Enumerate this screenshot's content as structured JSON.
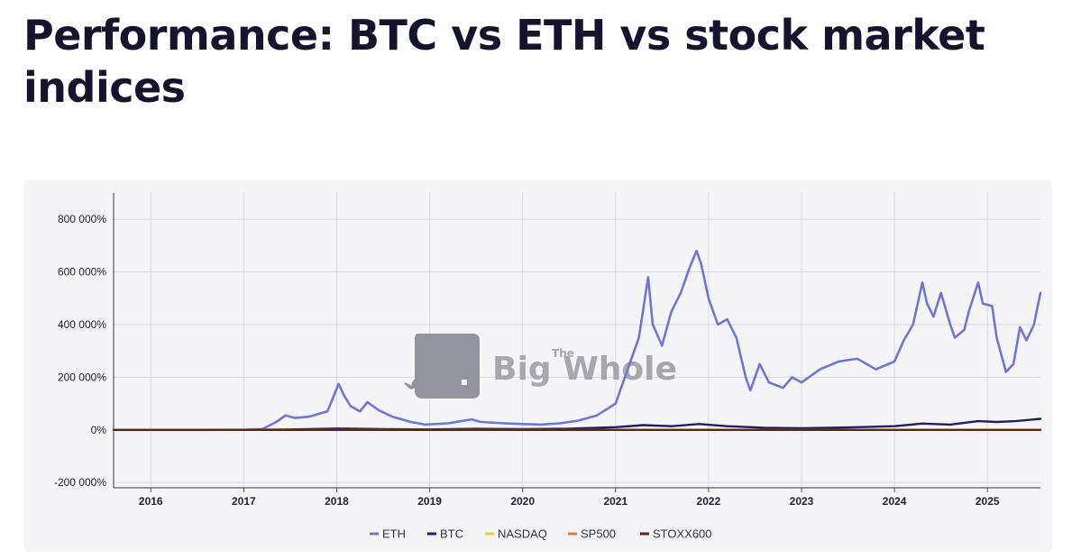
{
  "title": "Performance: BTC vs ETH vs stock market indices",
  "watermark": {
    "small": "The",
    "brand": "Big Whole"
  },
  "chart_data": {
    "type": "line",
    "title": "Performance: BTC vs ETH vs stock market indices",
    "xlabel": "",
    "ylabel": "",
    "y_unit": "%",
    "xlim": [
      2015.6,
      2025.57
    ],
    "ylim": [
      -220000,
      900000
    ],
    "x_ticks": [
      2016,
      2017,
      2018,
      2019,
      2020,
      2021,
      2022,
      2023,
      2024,
      2025
    ],
    "x_tick_labels": [
      "2016",
      "2017",
      "2018",
      "2019",
      "2020",
      "2021",
      "2022",
      "2023",
      "2024",
      "2025"
    ],
    "y_ticks": [
      -200000,
      0,
      200000,
      400000,
      600000,
      800000
    ],
    "y_tick_labels": [
      "-200 000%",
      "0%",
      "200 000%",
      "400 000%",
      "600 000%",
      "800 000%"
    ],
    "grid": true,
    "legend_position": "bottom-center",
    "series": [
      {
        "name": "ETH",
        "color": "#6f76d8",
        "x": [
          2015.6,
          2016.5,
          2017.0,
          2017.2,
          2017.35,
          2017.45,
          2017.55,
          2017.7,
          2017.9,
          2017.97,
          2018.02,
          2018.08,
          2018.15,
          2018.25,
          2018.33,
          2018.45,
          2018.6,
          2018.8,
          2018.95,
          2019.2,
          2019.45,
          2019.55,
          2019.8,
          2020.0,
          2020.2,
          2020.4,
          2020.6,
          2020.8,
          2021.0,
          2021.1,
          2021.25,
          2021.35,
          2021.4,
          2021.5,
          2021.6,
          2021.7,
          2021.8,
          2021.87,
          2021.92,
          2022.0,
          2022.1,
          2022.2,
          2022.3,
          2022.4,
          2022.45,
          2022.55,
          2022.65,
          2022.8,
          2022.9,
          2023.0,
          2023.2,
          2023.4,
          2023.6,
          2023.8,
          2024.0,
          2024.1,
          2024.2,
          2024.3,
          2024.35,
          2024.42,
          2024.5,
          2024.6,
          2024.65,
          2024.75,
          2024.8,
          2024.9,
          2024.95,
          2025.05,
          2025.1,
          2025.2,
          2025.28,
          2025.35,
          2025.42,
          2025.5,
          2025.57
        ],
        "y": [
          0,
          0,
          500,
          3000,
          30000,
          55000,
          45000,
          50000,
          70000,
          130000,
          175000,
          130000,
          90000,
          70000,
          105000,
          75000,
          50000,
          30000,
          20000,
          25000,
          40000,
          30000,
          25000,
          22000,
          20000,
          25000,
          35000,
          55000,
          100000,
          200000,
          350000,
          580000,
          400000,
          320000,
          450000,
          520000,
          620000,
          680000,
          630000,
          500000,
          400000,
          420000,
          350000,
          200000,
          150000,
          250000,
          180000,
          160000,
          200000,
          180000,
          230000,
          260000,
          270000,
          230000,
          260000,
          340000,
          400000,
          560000,
          480000,
          430000,
          520000,
          400000,
          350000,
          380000,
          450000,
          560000,
          480000,
          470000,
          350000,
          220000,
          250000,
          390000,
          340000,
          400000,
          520000
        ]
      },
      {
        "name": "BTC",
        "color": "#1f1f66",
        "x": [
          2015.6,
          2017.0,
          2017.5,
          2018.0,
          2018.5,
          2019.0,
          2019.5,
          2020.0,
          2020.5,
          2021.0,
          2021.3,
          2021.6,
          2021.9,
          2022.2,
          2022.6,
          2023.0,
          2023.5,
          2024.0,
          2024.3,
          2024.6,
          2024.9,
          2025.1,
          2025.3,
          2025.57
        ],
        "y": [
          0,
          200,
          1500,
          5000,
          3000,
          1500,
          4000,
          3000,
          4500,
          10000,
          18000,
          14000,
          22000,
          14000,
          8000,
          6000,
          9000,
          14000,
          24000,
          20000,
          33000,
          30000,
          33000,
          42000
        ]
      },
      {
        "name": "NASDAQ",
        "color": "#f5cf40",
        "x": [
          2015.6,
          2025.57
        ],
        "y": [
          0,
          200
        ]
      },
      {
        "name": "SP500",
        "color": "#e07b2c",
        "x": [
          2015.6,
          2025.57
        ],
        "y": [
          0,
          150
        ]
      },
      {
        "name": "STOXX600",
        "color": "#5a2a10",
        "x": [
          2015.6,
          2025.57
        ],
        "y": [
          0,
          50
        ]
      }
    ]
  }
}
